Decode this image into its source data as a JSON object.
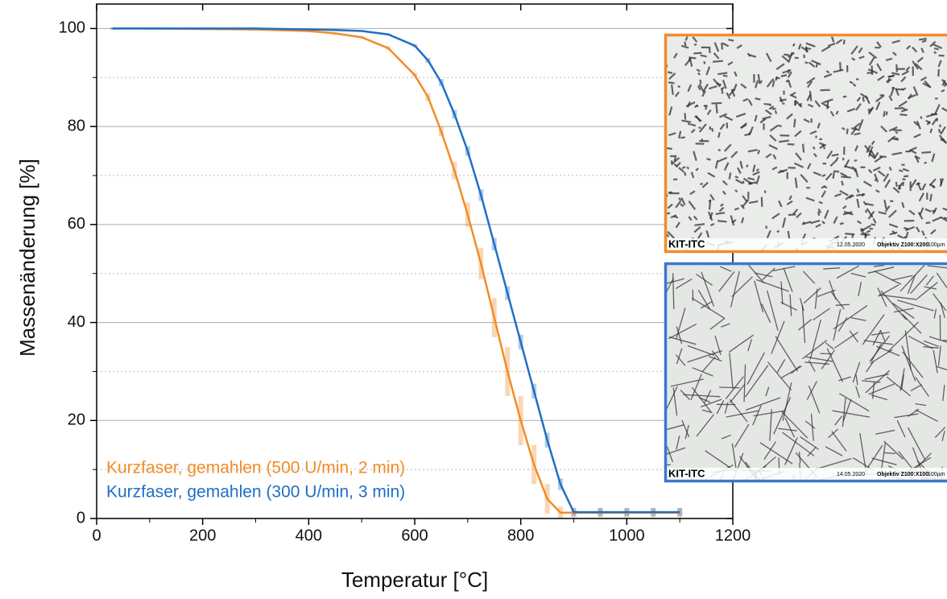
{
  "chart_data": {
    "type": "line",
    "x_label": "Temperatur [°C]",
    "y_label": "Massenänderung [%]",
    "x": [
      30,
      100,
      200,
      300,
      400,
      450,
      500,
      550,
      600,
      625,
      650,
      675,
      700,
      725,
      750,
      775,
      800,
      825,
      850,
      875,
      900,
      950,
      1000,
      1050,
      1100
    ],
    "series": [
      {
        "name": "Kurzfaser, gemahlen (500 U/min, 2 min)",
        "color": "#f28c28",
        "values": [
          100,
          100,
          99.9,
          99.8,
          99.5,
          99.0,
          98.2,
          96.0,
          90.5,
          86,
          79,
          71,
          62,
          52,
          41,
          30,
          20,
          11,
          4,
          1.2,
          1.2,
          1.2,
          1.2,
          1.2,
          1.2
        ],
        "errors": [
          0.2,
          0.2,
          0.2,
          0.2,
          0.3,
          0.3,
          0.3,
          0.4,
          0.5,
          0.8,
          1,
          1.8,
          2.5,
          3.2,
          4,
          5,
          5,
          4,
          3,
          1.2,
          1,
          1,
          1,
          1,
          1
        ]
      },
      {
        "name": "Kurzfaser, gemahlen (300 U/min, 3 min)",
        "color": "#1f6fc5",
        "values": [
          100,
          100,
          100,
          100,
          99.8,
          99.7,
          99.5,
          98.8,
          96.5,
          93.5,
          89,
          82.5,
          75,
          66,
          56,
          46,
          36,
          26,
          16,
          7,
          1.3,
          1.3,
          1.3,
          1.3,
          1.3
        ],
        "errors": [
          0.2,
          0.2,
          0.2,
          0.2,
          0.2,
          0.2,
          0.2,
          0.2,
          0.3,
          0.5,
          0.7,
          0.9,
          1,
          1.2,
          1.3,
          1.4,
          1.5,
          1.5,
          1.5,
          1.2,
          0.8,
          0.8,
          0.8,
          0.8,
          0.8
        ]
      }
    ],
    "xlim": [
      0,
      1200
    ],
    "ylim": [
      0,
      105
    ],
    "xticks": [
      0,
      200,
      400,
      600,
      800,
      1000,
      1200
    ],
    "yticks": [
      0,
      20,
      40,
      60,
      80,
      100
    ],
    "minor_xticks": [
      100,
      300,
      500,
      700,
      900,
      1100
    ],
    "minor_yticks": [
      10,
      30,
      50,
      70,
      90
    ],
    "grid": true
  },
  "images": [
    {
      "label": "KIT-ITC",
      "date": "12.05.2020",
      "objective": "Objektiv Z100:X200",
      "scale": "100µm",
      "color": "#f28c28"
    },
    {
      "label": "KIT-ITC",
      "date": "14.05.2020",
      "objective": "Objektiv Z100:X100",
      "scale": "100µm",
      "color": "#3a78d0"
    }
  ]
}
